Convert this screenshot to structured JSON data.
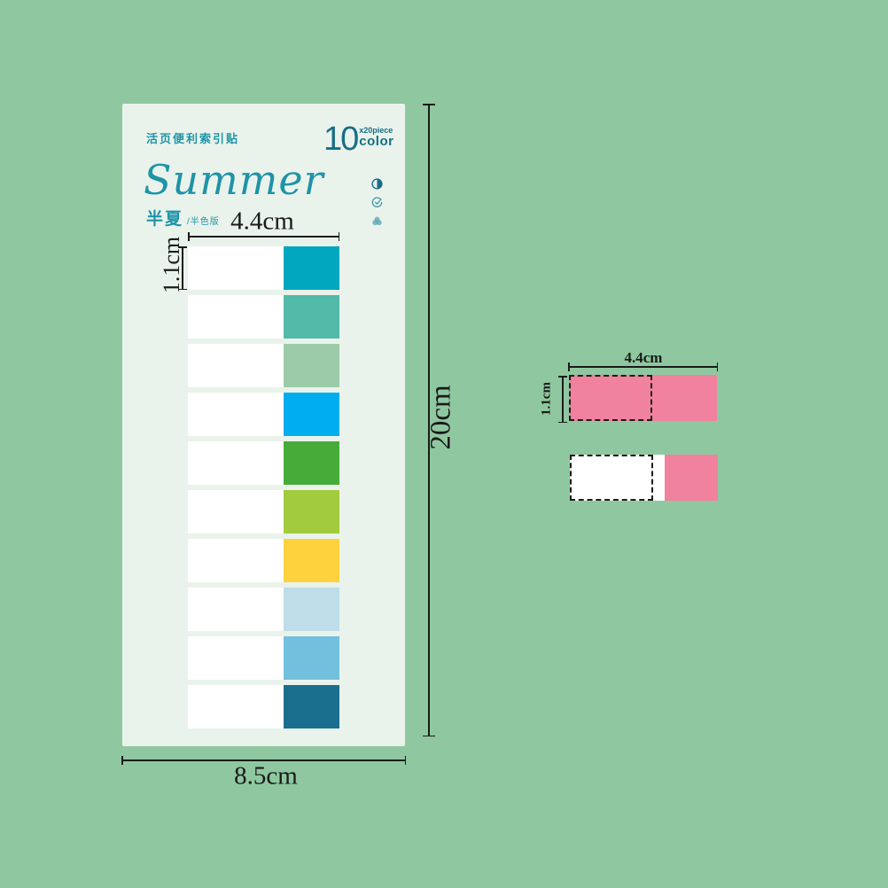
{
  "colors": {
    "bg": "#8FC8A0",
    "card": "#E9F3EB",
    "accent": "#1F93A8",
    "accent-dark": "#176E86",
    "icon-light": "#5CA7B6",
    "ink": "#1A1A1A",
    "pink": "#F0819F",
    "white": "#FFFFFF"
  },
  "card": {
    "header_label": "活页便利索引贴",
    "count": {
      "number": "10",
      "pieces": "x20piece",
      "unit": "color"
    },
    "title": "Summer",
    "subtitle": "半夏",
    "subtitle_note": "/半色版",
    "icons": [
      "half-circle-icon",
      "check-circle-icon",
      "trefoil-icon"
    ],
    "tab_colors": [
      "#00A7BE",
      "#53B9A8",
      "#9CCBA9",
      "#00AEEF",
      "#47AB3A",
      "#A2CB3E",
      "#FDD23C",
      "#BFDCE9",
      "#72C0DE",
      "#1A6F8E"
    ]
  },
  "dimensions": {
    "tab_width": "4.4cm",
    "tab_height": "1.1cm",
    "sheet_height": "20cm",
    "sheet_width": "8.5cm"
  },
  "detail": {
    "width_label": "4.4cm",
    "height_label": "1.1cm"
  }
}
